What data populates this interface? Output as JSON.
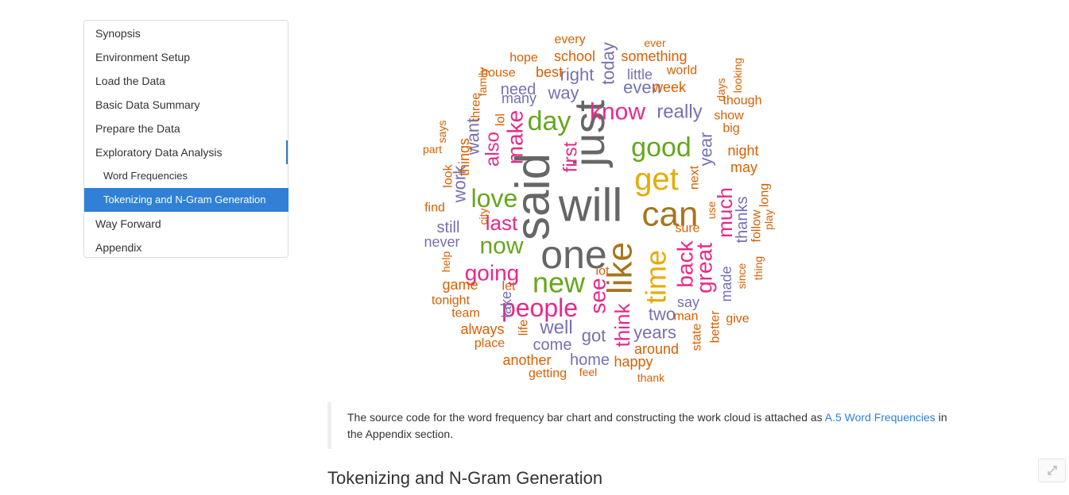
{
  "toc": {
    "items": [
      {
        "label": "Synopsis",
        "level": 1,
        "state": "normal"
      },
      {
        "label": "Environment Setup",
        "level": 1,
        "state": "normal"
      },
      {
        "label": "Load the Data",
        "level": 1,
        "state": "normal"
      },
      {
        "label": "Basic Data Summary",
        "level": 1,
        "state": "normal"
      },
      {
        "label": "Prepare the Data",
        "level": 1,
        "state": "normal"
      },
      {
        "label": "Exploratory Data Analysis",
        "level": 1,
        "state": "open"
      },
      {
        "label": "Word Frequencies",
        "level": 2,
        "state": "normal"
      },
      {
        "label": "Tokenizing and N-Gram Generation",
        "level": 2,
        "state": "active"
      },
      {
        "label": "Way Forward",
        "level": 1,
        "state": "normal"
      },
      {
        "label": "Appendix",
        "level": 1,
        "state": "normal"
      }
    ]
  },
  "wordcloud": {
    "colors": {
      "grey": "#666666",
      "gold": "#e6ab02",
      "brown": "#a6761d",
      "pink": "#e7298a",
      "green": "#66a61e",
      "purple": "#7570b3",
      "orange": "#d95f02"
    },
    "words": [
      {
        "text": "said",
        "color": "grey"
      },
      {
        "text": "will",
        "color": "grey"
      },
      {
        "text": "just",
        "color": "grey"
      },
      {
        "text": "one",
        "color": "grey"
      },
      {
        "text": "can",
        "color": "brown"
      },
      {
        "text": "get",
        "color": "gold"
      },
      {
        "text": "like",
        "color": "brown"
      },
      {
        "text": "time",
        "color": "gold"
      },
      {
        "text": "good",
        "color": "green"
      },
      {
        "text": "new",
        "color": "green"
      },
      {
        "text": "know",
        "color": "pink"
      },
      {
        "text": "day",
        "color": "green"
      },
      {
        "text": "people",
        "color": "pink"
      },
      {
        "text": "now",
        "color": "green"
      },
      {
        "text": "love",
        "color": "green"
      },
      {
        "text": "back",
        "color": "pink"
      },
      {
        "text": "great",
        "color": "pink"
      },
      {
        "text": "going",
        "color": "pink"
      },
      {
        "text": "make",
        "color": "pink"
      },
      {
        "text": "see",
        "color": "pink"
      },
      {
        "text": "last",
        "color": "pink"
      },
      {
        "text": "first",
        "color": "pink"
      },
      {
        "text": "also",
        "color": "pink"
      },
      {
        "text": "much",
        "color": "pink"
      },
      {
        "text": "think",
        "color": "pink"
      },
      {
        "text": "really",
        "color": "purple"
      },
      {
        "text": "year",
        "color": "purple"
      },
      {
        "text": "want",
        "color": "purple"
      },
      {
        "text": "right",
        "color": "purple"
      },
      {
        "text": "way",
        "color": "purple"
      },
      {
        "text": "need",
        "color": "purple"
      },
      {
        "text": "even",
        "color": "purple"
      },
      {
        "text": "today",
        "color": "purple"
      },
      {
        "text": "well",
        "color": "purple"
      },
      {
        "text": "two",
        "color": "purple"
      },
      {
        "text": "years",
        "color": "purple"
      },
      {
        "text": "got",
        "color": "purple"
      },
      {
        "text": "work",
        "color": "purple"
      },
      {
        "text": "still",
        "color": "purple"
      },
      {
        "text": "thanks",
        "color": "purple"
      },
      {
        "text": "come",
        "color": "purple"
      },
      {
        "text": "home",
        "color": "purple"
      },
      {
        "text": "say",
        "color": "purple"
      },
      {
        "text": "made",
        "color": "purple"
      },
      {
        "text": "many",
        "color": "purple"
      },
      {
        "text": "little",
        "color": "purple"
      },
      {
        "text": "never",
        "color": "purple"
      },
      {
        "text": "take",
        "color": "purple"
      },
      {
        "text": "every",
        "color": "orange"
      },
      {
        "text": "ever",
        "color": "orange"
      },
      {
        "text": "school",
        "color": "orange"
      },
      {
        "text": "something",
        "color": "orange"
      },
      {
        "text": "hope",
        "color": "orange"
      },
      {
        "text": "family",
        "color": "orange"
      },
      {
        "text": "world",
        "color": "orange"
      },
      {
        "text": "looking",
        "color": "orange"
      },
      {
        "text": "house",
        "color": "orange"
      },
      {
        "text": "best",
        "color": "orange"
      },
      {
        "text": "week",
        "color": "orange"
      },
      {
        "text": "days",
        "color": "orange"
      },
      {
        "text": "three",
        "color": "orange"
      },
      {
        "text": "though",
        "color": "orange"
      },
      {
        "text": "lol",
        "color": "orange"
      },
      {
        "text": "show",
        "color": "orange"
      },
      {
        "text": "says",
        "color": "orange"
      },
      {
        "text": "big",
        "color": "orange"
      },
      {
        "text": "things",
        "color": "orange"
      },
      {
        "text": "night",
        "color": "orange"
      },
      {
        "text": "part",
        "color": "orange"
      },
      {
        "text": "may",
        "color": "orange"
      },
      {
        "text": "next",
        "color": "orange"
      },
      {
        "text": "look",
        "color": "orange"
      },
      {
        "text": "long",
        "color": "orange"
      },
      {
        "text": "find",
        "color": "orange"
      },
      {
        "text": "city",
        "color": "orange"
      },
      {
        "text": "use",
        "color": "orange"
      },
      {
        "text": "follow",
        "color": "orange"
      },
      {
        "text": "play",
        "color": "orange"
      },
      {
        "text": "sure",
        "color": "orange"
      },
      {
        "text": "help",
        "color": "orange"
      },
      {
        "text": "lot",
        "color": "orange"
      },
      {
        "text": "thing",
        "color": "orange"
      },
      {
        "text": "since",
        "color": "orange"
      },
      {
        "text": "game",
        "color": "orange"
      },
      {
        "text": "let",
        "color": "orange"
      },
      {
        "text": "tonight",
        "color": "orange"
      },
      {
        "text": "team",
        "color": "orange"
      },
      {
        "text": "man",
        "color": "orange"
      },
      {
        "text": "give",
        "color": "orange"
      },
      {
        "text": "always",
        "color": "orange"
      },
      {
        "text": "life",
        "color": "orange"
      },
      {
        "text": "better",
        "color": "orange"
      },
      {
        "text": "place",
        "color": "orange"
      },
      {
        "text": "state",
        "color": "orange"
      },
      {
        "text": "around",
        "color": "orange"
      },
      {
        "text": "another",
        "color": "orange"
      },
      {
        "text": "happy",
        "color": "orange"
      },
      {
        "text": "getting",
        "color": "orange"
      },
      {
        "text": "feel",
        "color": "orange"
      },
      {
        "text": "thank",
        "color": "orange"
      }
    ]
  },
  "note": {
    "text_before": "The source code for the word frequency bar chart and constructing the work cloud is attached as ",
    "link_label": "A.5 Word Frequencies",
    "text_after": " in the Appendix section."
  },
  "section": {
    "title": "Tokenizing and N-Gram Generation"
  },
  "float_button": {
    "icon": "expand-icon"
  }
}
